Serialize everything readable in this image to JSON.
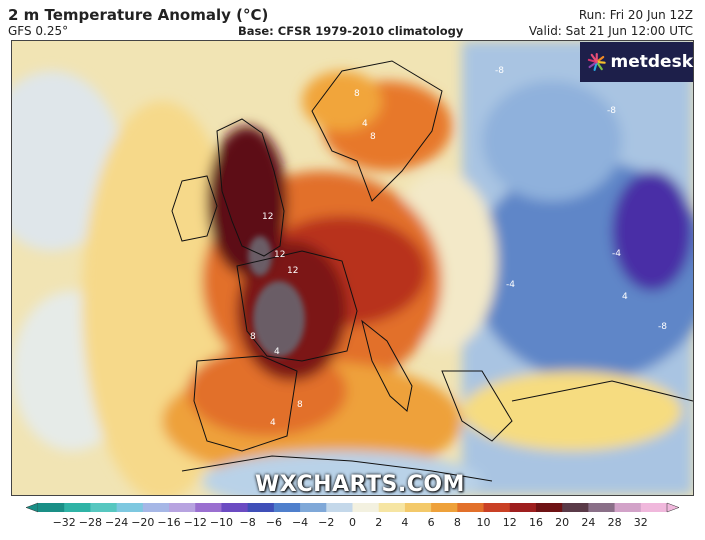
{
  "header": {
    "title": "2 m Temperature Anomaly (°C)",
    "model": "GFS 0.25°",
    "base": "Base: CFSR 1979-2010 climatology",
    "run": "Run: Fri 20 Jun 12Z",
    "valid": "Valid: Sat 21 Jun 12:00 UTC"
  },
  "logo": {
    "text": "metdesk",
    "icon": "metdesk-logo-icon"
  },
  "watermark": "WXCHARTS.COM",
  "map": {
    "contour_labels": [
      "12",
      "12",
      "12",
      "8",
      "8",
      "8",
      "8",
      "4",
      "4",
      "4",
      "4",
      "-4",
      "-4",
      "-8",
      "-8",
      "-8"
    ],
    "colors": {
      "extreme_heat": "#6a5d66",
      "very_hot": "#5a0f12",
      "hot": "#a8241e",
      "warm": "#e0641f",
      "mild_warm": "#f0a12a",
      "slight_warm": "#f7d673",
      "neutral": "#f5ecc8",
      "slight_cool": "#dde9f1",
      "cool": "#aac7e3",
      "cold": "#5a84c4",
      "very_cold": "#3a3fa8",
      "extreme_cold": "#5a1fa0"
    }
  },
  "colorbar": {
    "labels": [
      "−32",
      "−28",
      "−24",
      "−20",
      "−16",
      "−12",
      "−10",
      "−8",
      "−6",
      "−4",
      "−2",
      "0",
      "2",
      "4",
      "6",
      "8",
      "10",
      "12",
      "16",
      "20",
      "24",
      "28",
      "32"
    ],
    "colors": [
      "#1a8f86",
      "#2fb3a6",
      "#57c7c0",
      "#7ec8e0",
      "#a6b7e6",
      "#b7a3e0",
      "#9a6fd0",
      "#6b4bc2",
      "#3f4fb8",
      "#4f7fcc",
      "#7fa8d8",
      "#c4d8ea",
      "#f3f1e0",
      "#f6e5a3",
      "#f3c96a",
      "#eea13a",
      "#e2702a",
      "#c94025",
      "#9e1e1e",
      "#6e1214",
      "#5a3a48",
      "#8a6f88",
      "#d2a2c8",
      "#f0b8dc"
    ]
  }
}
